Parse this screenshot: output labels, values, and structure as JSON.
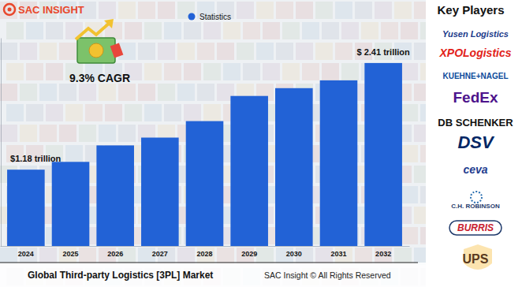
{
  "chart_data": {
    "type": "bar",
    "title": "Global Third-party Logistics [3PL] Market",
    "categories": [
      "2024",
      "2025",
      "2026",
      "2027",
      "2028",
      "2029",
      "2030",
      "2031",
      "2032"
    ],
    "series": [
      {
        "name": "Statistics",
        "color": "#2262d6",
        "values": [
          1.18,
          1.27,
          1.46,
          1.55,
          1.74,
          2.03,
          2.12,
          2.21,
          2.41
        ],
        "value_labels": [
          "$1.18 trillion",
          null,
          null,
          null,
          null,
          null,
          null,
          null,
          "$ 2.41 trillion"
        ]
      }
    ],
    "data_labels": true,
    "annotations": [
      {
        "text": "9.3% CAGR"
      }
    ],
    "ylim": [
      0.3,
      2.7
    ],
    "tick_labels": "x",
    "legend": "top",
    "grid": false
  },
  "brand": "SAC INSIGHT",
  "key_players": {
    "title": "Key Players",
    "names": [
      "Yusen Logistics",
      "XPOLogistics",
      "KUEHNE+NAGEL",
      "FedEx",
      "DB SCHENKER",
      "DSV",
      "ceva",
      "C.H. ROBINSON",
      "BURRIS",
      "UPS"
    ]
  },
  "footer": "SAC Insight © All Rights Reserved"
}
